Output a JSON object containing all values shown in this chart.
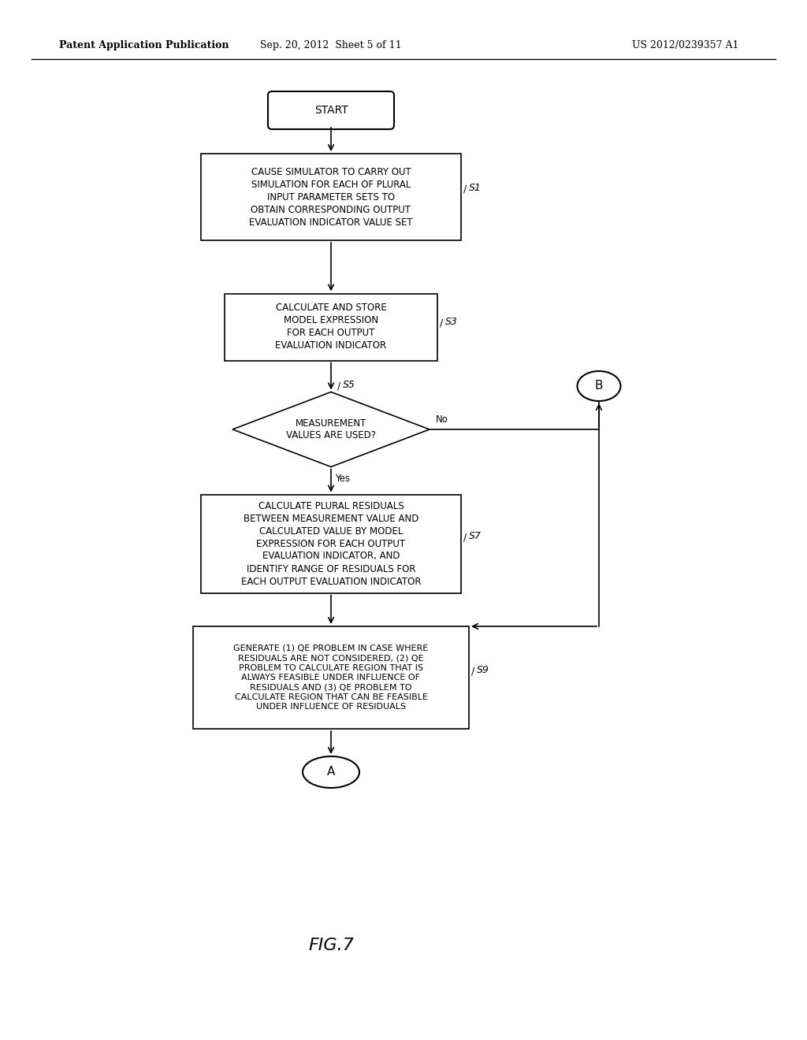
{
  "title_left": "Patent Application Publication",
  "title_center": "Sep. 20, 2012  Sheet 5 of 11",
  "title_right": "US 2012/0239357 A1",
  "fig_label": "FIG.7",
  "background_color": "#ffffff",
  "line_color": "#000000",
  "text_color": "#000000",
  "start_label": "START",
  "s1_text": "CAUSE SIMULATOR TO CARRY OUT\nSIMULATION FOR EACH OF PLURAL\nINPUT PARAMETER SETS TO\nOBTAIN CORRESPONDING OUTPUT\nEVALUATION INDICATOR VALUE SET",
  "s1_id": "S1",
  "s3_text": "CALCULATE AND STORE\nMODEL EXPRESSION\nFOR EACH OUTPUT\nEVALUATION INDICATOR",
  "s3_id": "S3",
  "s5_text": "MEASUREMENT\nVALUES ARE USED?",
  "s5_id": "S5",
  "s7_text": "CALCULATE PLURAL RESIDUALS\nBETWEEN MEASUREMENT VALUE AND\nCALCULATED VALUE BY MODEL\nEXPRESSION FOR EACH OUTPUT\nEVALUATION INDICATOR, AND\nIDENTIFY RANGE OF RESIDUALS FOR\nEACH OUTPUT EVALUATION INDICATOR",
  "s7_id": "S7",
  "s9_text": "GENERATE (1) QE PROBLEM IN CASE WHERE\nRESIDUALS ARE NOT CONSIDERED, (2) QE\nPROBLEM TO CALCULATE REGION THAT IS\nALWAYS FEASIBLE UNDER INFLUENCE OF\nRESIDUALS AND (3) QE PROBLEM TO\nCALCULATE REGION THAT CAN BE FEASIBLE\nUNDER INFLUENCE OF RESIDUALS",
  "s9_id": "S9",
  "yes_label": "Yes",
  "no_label": "No",
  "end_label": "A",
  "connector_label": "B"
}
